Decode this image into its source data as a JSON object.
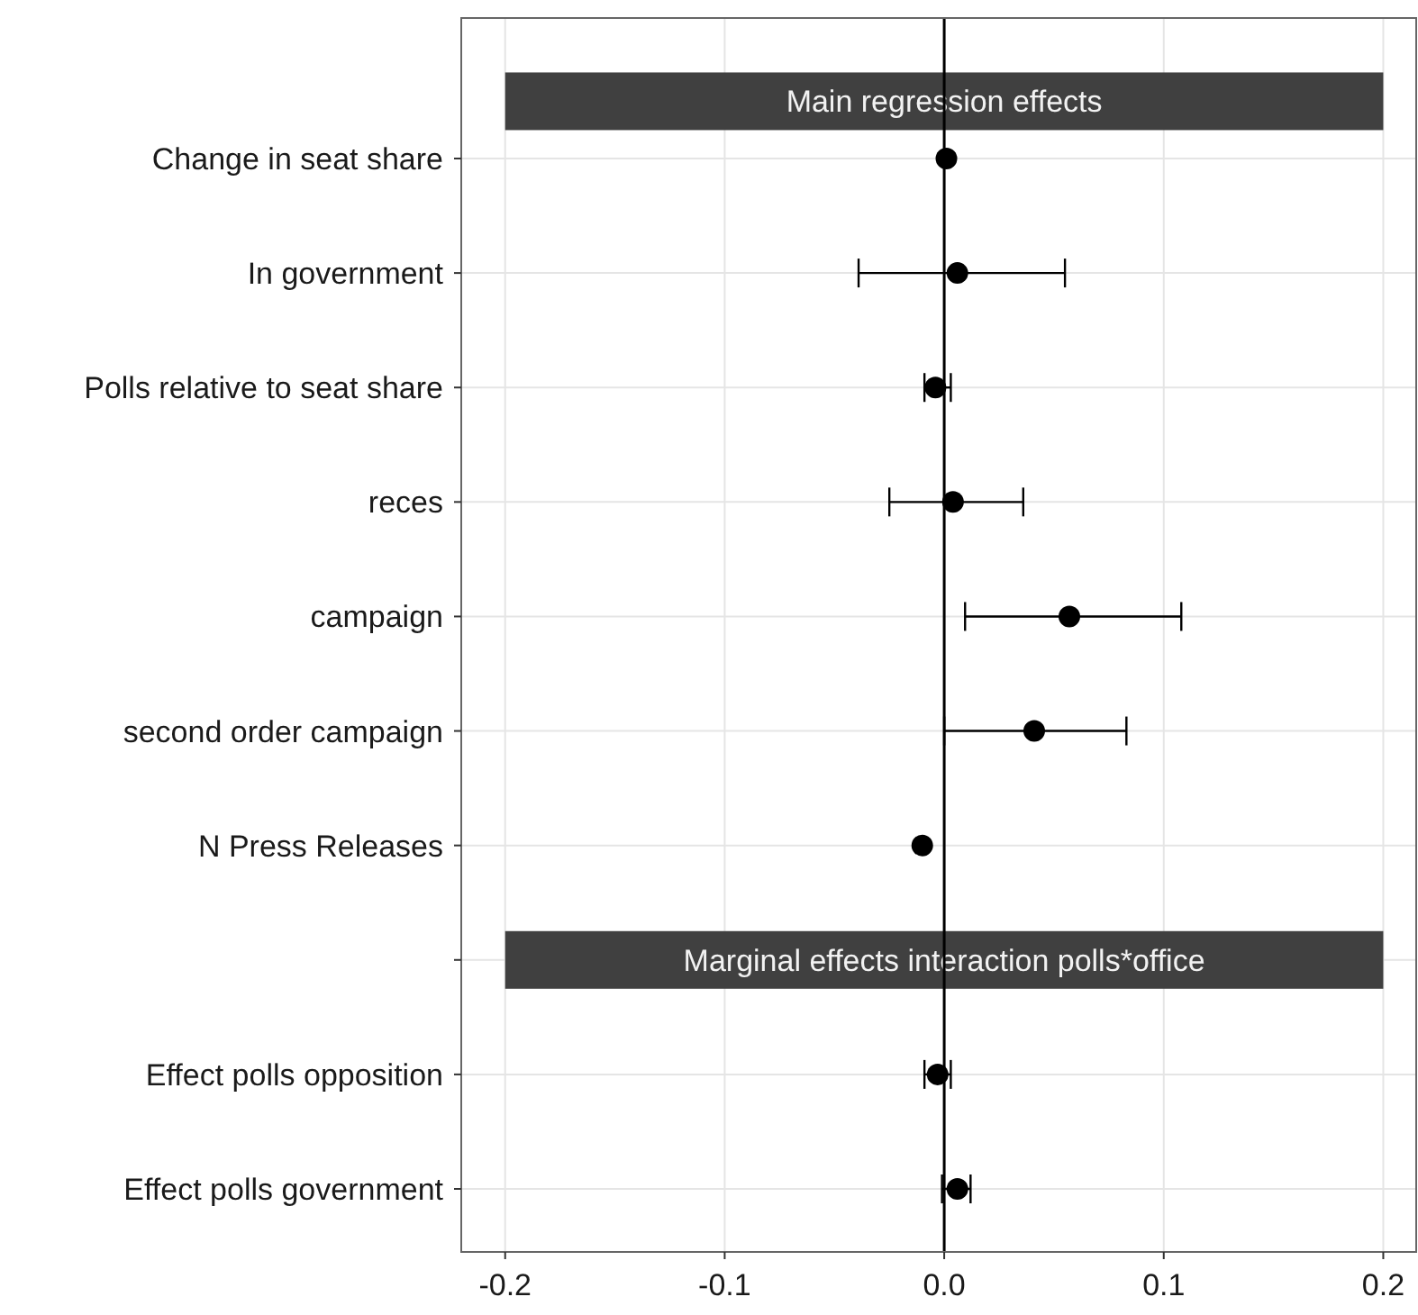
{
  "chart_data": {
    "type": "scatter",
    "orientation": "horizontal",
    "categories": [
      "Change in seat share",
      "In government",
      "Polls relative to seat share",
      "reces",
      "campaign",
      "second order campaign",
      "N Press Releases",
      null,
      "Effect polls opposition",
      "Effect polls government"
    ],
    "values": [
      0.001,
      0.006,
      -0.004,
      0.004,
      0.057,
      0.041,
      -0.01,
      null,
      -0.003,
      0.006
    ],
    "errors": [
      null,
      [
        -0.039,
        0.055
      ],
      [
        -0.009,
        0.003
      ],
      [
        -0.025,
        0.036
      ],
      [
        0.0095,
        0.108
      ],
      [
        0.0,
        0.083
      ],
      null,
      null,
      [
        -0.009,
        0.003
      ],
      [
        -0.001,
        0.012
      ]
    ],
    "color": "#000000",
    "marker": "circle",
    "xlim": [
      -0.22,
      0.215
    ],
    "xticks": [
      -0.2,
      -0.1,
      {
        "value": 0,
        "label": "0.0"
      },
      0.1,
      0.2
    ],
    "ref_lines": [
      {
        "axis": "x",
        "value": 0
      }
    ],
    "annotations": [
      "Main regression effects",
      "Marginal effects interaction polls*office"
    ],
    "grid": true
  }
}
